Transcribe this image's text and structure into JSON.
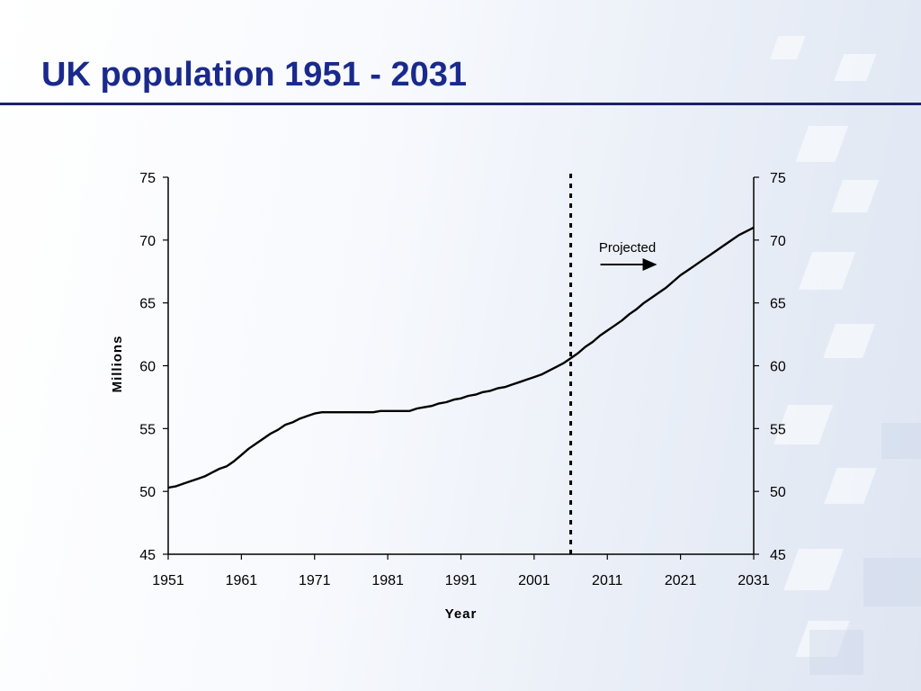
{
  "slide": {
    "title": "UK population 1951 - 2031"
  },
  "chart_data": {
    "type": "line",
    "ylabel": "Millions",
    "xlabel": "Year",
    "xlim": [
      1951,
      2031
    ],
    "ylim": [
      45,
      75
    ],
    "x_ticks": [
      "1951",
      "1961",
      "1971",
      "1981",
      "1991",
      "2001",
      "2011",
      "2021",
      "2031"
    ],
    "y_ticks": [
      "45",
      "50",
      "55",
      "60",
      "65",
      "70",
      "75"
    ],
    "secondary_y_ticks": [
      "45",
      "50",
      "55",
      "60",
      "65",
      "70",
      "75"
    ],
    "projection_start": 2006,
    "projection_label": "Projected",
    "line_color": "#000000",
    "series": [
      {
        "x": [
          1951,
          1952,
          1953,
          1954,
          1955,
          1956,
          1957,
          1958,
          1959,
          1960,
          1961,
          1962,
          1963,
          1964,
          1965,
          1966,
          1967,
          1968,
          1969,
          1970,
          1971,
          1972,
          1973,
          1974,
          1975,
          1976,
          1977,
          1978,
          1979,
          1980,
          1981,
          1982,
          1983,
          1984,
          1985,
          1986,
          1987,
          1988,
          1989,
          1990,
          1991,
          1992,
          1993,
          1994,
          1995,
          1996,
          1997,
          1998,
          1999,
          2000,
          2001,
          2002,
          2003,
          2004,
          2005,
          2006,
          2007,
          2008,
          2009,
          2010,
          2011,
          2012,
          2013,
          2014,
          2015,
          2016,
          2017,
          2018,
          2019,
          2020,
          2021,
          2022,
          2023,
          2024,
          2025,
          2026,
          2027,
          2028,
          2029,
          2030,
          2031
        ],
        "values": [
          50.3,
          50.4,
          50.6,
          50.8,
          51.0,
          51.2,
          51.5,
          51.8,
          52.0,
          52.4,
          52.9,
          53.4,
          53.8,
          54.2,
          54.6,
          54.9,
          55.3,
          55.5,
          55.8,
          56.0,
          56.2,
          56.3,
          56.3,
          56.3,
          56.3,
          56.3,
          56.3,
          56.3,
          56.3,
          56.4,
          56.4,
          56.4,
          56.4,
          56.4,
          56.6,
          56.7,
          56.8,
          57.0,
          57.1,
          57.3,
          57.4,
          57.6,
          57.7,
          57.9,
          58.0,
          58.2,
          58.3,
          58.5,
          58.7,
          58.9,
          59.1,
          59.3,
          59.6,
          59.9,
          60.2,
          60.6,
          61.0,
          61.5,
          61.9,
          62.4,
          62.8,
          63.2,
          63.6,
          64.1,
          64.5,
          65.0,
          65.4,
          65.8,
          66.2,
          66.7,
          67.2,
          67.6,
          68.0,
          68.4,
          68.8,
          69.2,
          69.6,
          70.0,
          70.4,
          70.7,
          71.0
        ]
      }
    ]
  }
}
